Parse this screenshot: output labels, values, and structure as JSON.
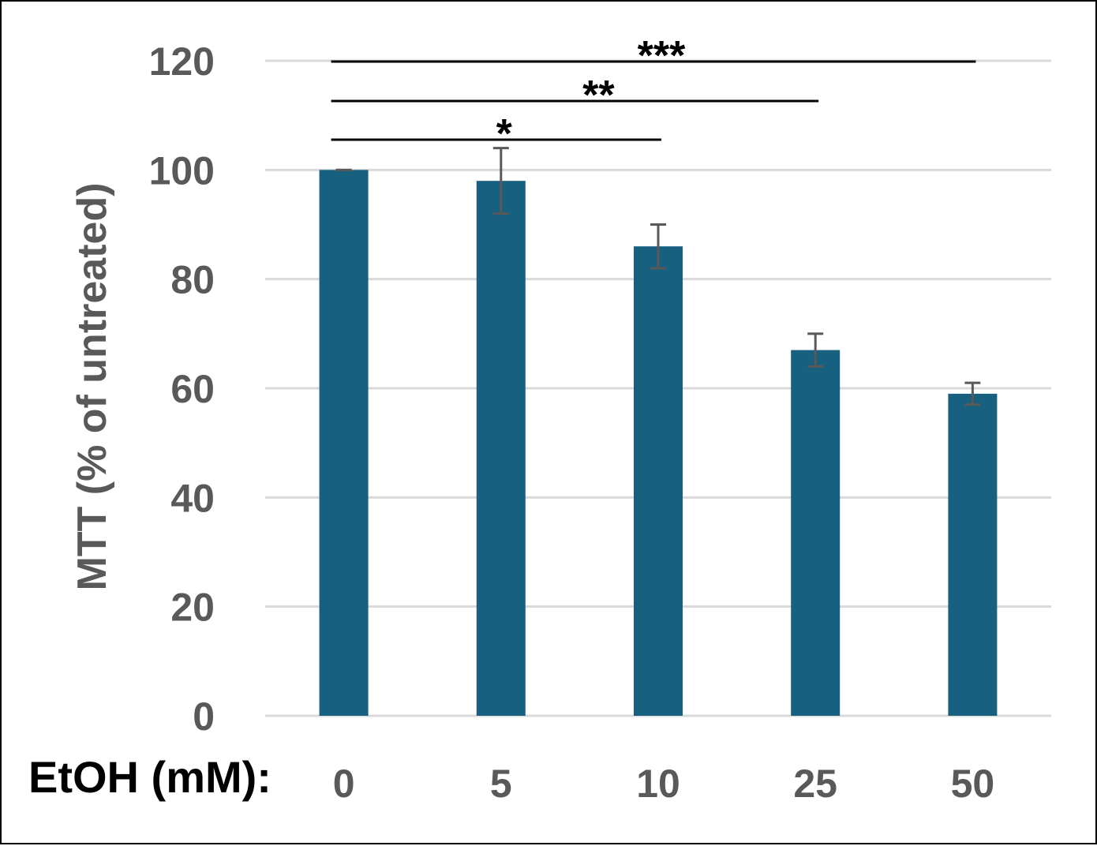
{
  "chart_data": {
    "type": "bar",
    "categories": [
      "0",
      "5",
      "10",
      "25",
      "50"
    ],
    "values": [
      100,
      98,
      86,
      67,
      59
    ],
    "errors": [
      0,
      6,
      4,
      3,
      2
    ],
    "xlabel": "EtOH (mM):",
    "ylabel": "MTT (% of untreated)",
    "ylim": [
      0,
      120
    ],
    "yticks": [
      0,
      20,
      40,
      60,
      80,
      100,
      120
    ],
    "grid": true,
    "bar_color": "#17607F",
    "error_color": "#595959",
    "significance": [
      {
        "from": "0",
        "to": "10",
        "label": "*"
      },
      {
        "from": "0",
        "to": "25",
        "label": "**"
      },
      {
        "from": "0",
        "to": "50",
        "label": "***"
      }
    ]
  }
}
